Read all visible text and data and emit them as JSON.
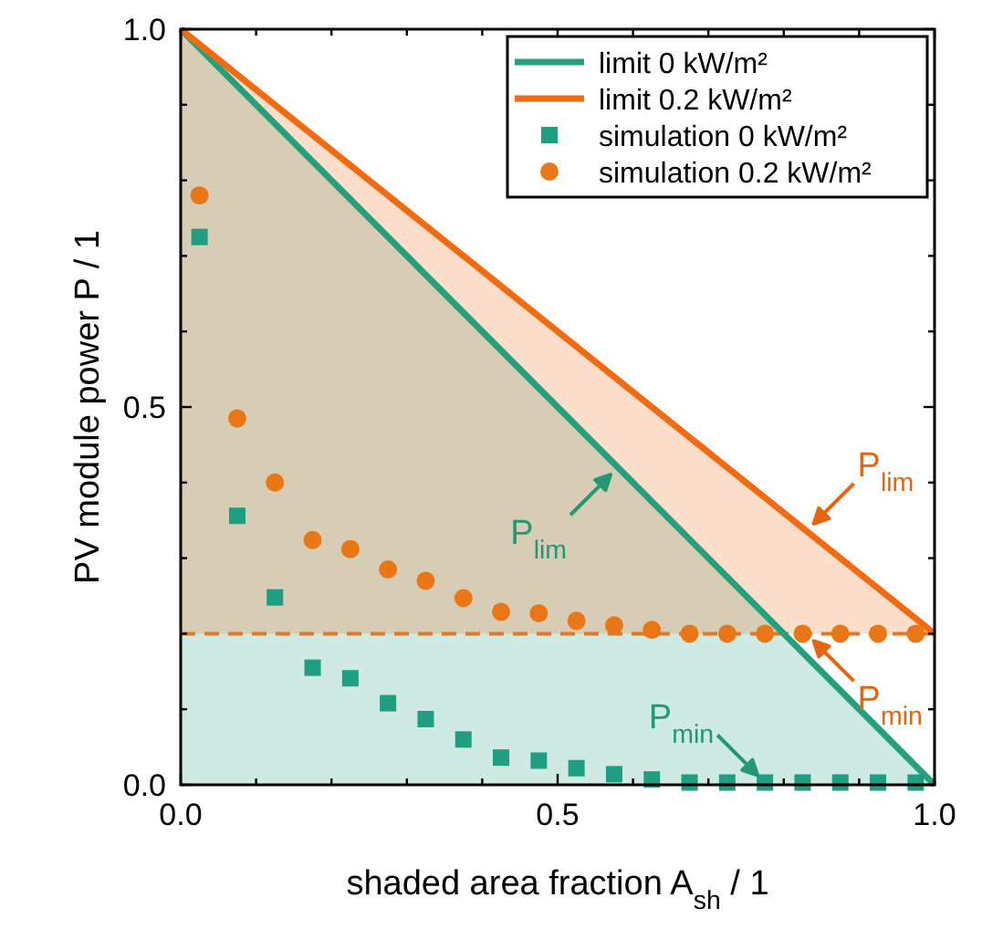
{
  "chart_data": {
    "type": "area",
    "xlabel": "shaded area fraction A$_{sh}$ / 1",
    "ylabel": "PV module power P / 1",
    "xlim": [
      0,
      1
    ],
    "ylim": [
      0,
      1
    ],
    "xticks": [
      {
        "value": 0,
        "label": "0.0"
      },
      {
        "value": 0.1,
        "label": null
      },
      {
        "value": 0.2,
        "label": null
      },
      {
        "value": 0.3,
        "label": null
      },
      {
        "value": 0.4,
        "label": null
      },
      {
        "value": 0.5,
        "label": "0.5"
      },
      {
        "value": 0.6,
        "label": null
      },
      {
        "value": 0.7,
        "label": null
      },
      {
        "value": 0.8,
        "label": null
      },
      {
        "value": 0.9,
        "label": null
      },
      {
        "value": 1,
        "label": "1.0"
      }
    ],
    "yticks": [
      {
        "value": 0,
        "label": "0.0"
      },
      {
        "value": 0.1,
        "label": null
      },
      {
        "value": 0.2,
        "label": null
      },
      {
        "value": 0.3,
        "label": null
      },
      {
        "value": 0.4,
        "label": null
      },
      {
        "value": 0.5,
        "label": "0.5"
      },
      {
        "value": 0.6,
        "label": null
      },
      {
        "value": 0.7,
        "label": null
      },
      {
        "value": 0.8,
        "label": null
      },
      {
        "value": 0.9,
        "label": null
      },
      {
        "value": 1,
        "label": "1.0"
      }
    ],
    "grid": false,
    "legend": "top right",
    "series": [
      {
        "name": "limit 0 kW/m²",
        "color": "#26a07c",
        "x": [
          0,
          1
        ],
        "values": [
          1,
          0
        ]
      },
      {
        "name": "limit 0.2 kW/m²",
        "color": "#f26b12",
        "x": [
          0,
          1
        ],
        "values": [
          1,
          0.2
        ]
      },
      {
        "name": "simulation 0 kW/m²",
        "type": "scatter",
        "color": "#1f9e82",
        "marker": "square",
        "x": [
          0.025,
          0.075,
          0.125,
          0.175,
          0.225,
          0.275,
          0.325,
          0.375,
          0.425,
          0.475,
          0.525,
          0.575,
          0.625,
          0.675,
          0.725,
          0.775,
          0.825,
          0.875,
          0.925,
          0.975
        ],
        "values": [
          0.725,
          0.356,
          0.248,
          0.155,
          0.141,
          0.108,
          0.087,
          0.06,
          0.036,
          0.032,
          0.022,
          0.014,
          0.007,
          0.003,
          0.003,
          0.003,
          0.003,
          0.003,
          0.003,
          0.003
        ]
      },
      {
        "name": "simulation 0.2 kW/m²",
        "type": "scatter",
        "color": "#eb7615",
        "marker": "circle",
        "x": [
          0.025,
          0.075,
          0.125,
          0.175,
          0.225,
          0.275,
          0.325,
          0.375,
          0.425,
          0.475,
          0.525,
          0.575,
          0.625,
          0.675,
          0.725,
          0.775,
          0.825,
          0.875,
          0.925,
          0.975
        ],
        "values": [
          0.78,
          0.485,
          0.4,
          0.324,
          0.312,
          0.285,
          0.27,
          0.247,
          0.229,
          0.227,
          0.217,
          0.211,
          0.205,
          0.2,
          0.2,
          0.2,
          0.2,
          0.2,
          0.2,
          0.2
        ]
      }
    ],
    "ref_lines": [
      {
        "axis": "y",
        "value": 0.2,
        "color": "#e07a28",
        "line_style": "dashed"
      }
    ],
    "annotations": [
      {
        "text": "P$_{lim}$",
        "x": 0.58,
        "y": 0.42
      },
      {
        "text": "P$_{lim}$",
        "x": 0.83,
        "y": 0.336
      },
      {
        "text": "P$_{min}$",
        "x": 0.83,
        "y": 0.2
      },
      {
        "text": "P$_{min}$",
        "x": 0.775,
        "y": 0.003
      }
    ]
  }
}
